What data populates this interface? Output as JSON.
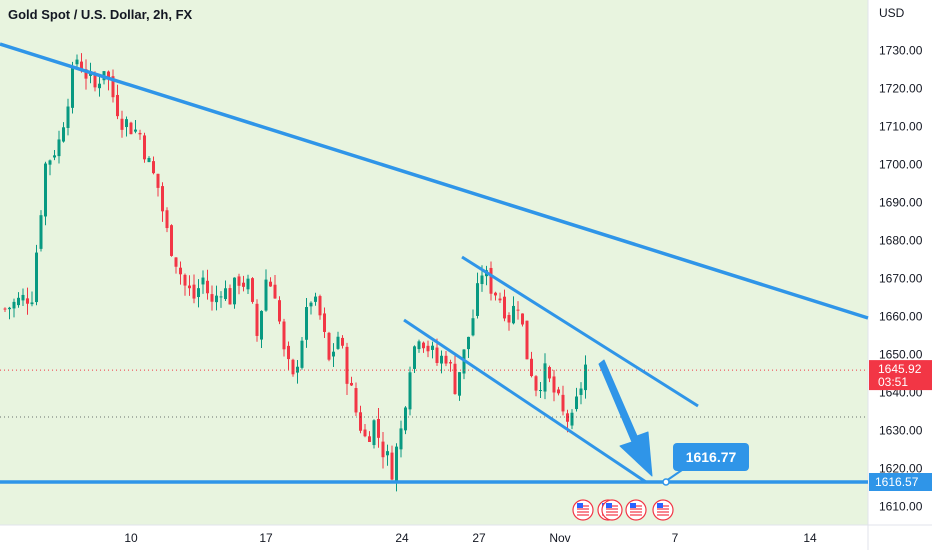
{
  "chart_title": "Gold Spot / U.S. Dollar, 2h, FX",
  "currency_label": "USD",
  "price_ticks": [
    "1730.00",
    "1720.00",
    "1710.00",
    "1700.00",
    "1690.00",
    "1680.00",
    "1670.00",
    "1660.00",
    "1650.00",
    "1640.00",
    "1630.00",
    "1620.00",
    "1610.00"
  ],
  "date_ticks": [
    "10",
    "17",
    "24",
    "27",
    "Nov",
    "7",
    "14"
  ],
  "price_label": {
    "value": "1645.92",
    "countdown": "03:51",
    "color": "#f23645"
  },
  "support_label": "1616.57",
  "target_label": "1616.77",
  "colors": {
    "up": "#089981",
    "down": "#f23645",
    "lines": "#2f95e8",
    "bg_tint": "#d5ebc5",
    "current_price": "#f23645"
  },
  "event_icons": [
    "us-flag-icon",
    "us-flag-icon",
    "us-flag-icon",
    "us-flag-icon",
    "us-flag-icon"
  ],
  "chart_data": {
    "type": "candlestick",
    "title": "Gold Spot / U.S. Dollar, 2h, FX",
    "xlabel": "",
    "ylabel": "USD",
    "ylim": [
      1605,
      1735
    ],
    "x_ticks": [
      "10",
      "17",
      "24",
      "27",
      "Nov",
      "7",
      "14"
    ],
    "anchor_path": [
      [
        0,
        1662
      ],
      [
        3,
        1664
      ],
      [
        6,
        1666
      ],
      [
        9,
        1700
      ],
      [
        12,
        1706
      ],
      [
        14,
        1718
      ],
      [
        16,
        1728
      ],
      [
        18,
        1724
      ],
      [
        20,
        1720
      ],
      [
        22,
        1726
      ],
      [
        24,
        1718
      ],
      [
        26,
        1712
      ],
      [
        28,
        1710
      ],
      [
        30,
        1708
      ],
      [
        32,
        1700
      ],
      [
        34,
        1694
      ],
      [
        36,
        1682
      ],
      [
        38,
        1675
      ],
      [
        40,
        1668
      ],
      [
        42,
        1665
      ],
      [
        44,
        1670
      ],
      [
        46,
        1663
      ],
      [
        48,
        1668
      ],
      [
        50,
        1665
      ],
      [
        52,
        1670
      ],
      [
        54,
        1668
      ],
      [
        56,
        1655
      ],
      [
        58,
        1670
      ],
      [
        60,
        1667
      ],
      [
        62,
        1650
      ],
      [
        64,
        1643
      ],
      [
        66,
        1655
      ],
      [
        68,
        1665
      ],
      [
        70,
        1660
      ],
      [
        72,
        1648
      ],
      [
        74,
        1655
      ],
      [
        76,
        1645
      ],
      [
        78,
        1635
      ],
      [
        80,
        1628
      ],
      [
        82,
        1632
      ],
      [
        84,
        1625
      ],
      [
        86,
        1620
      ],
      [
        88,
        1630
      ],
      [
        90,
        1648
      ],
      [
        92,
        1656
      ],
      [
        94,
        1652
      ],
      [
        96,
        1648
      ],
      [
        98,
        1650
      ],
      [
        100,
        1642
      ],
      [
        102,
        1650
      ],
      [
        104,
        1660
      ],
      [
        106,
        1672
      ],
      [
        108,
        1668
      ],
      [
        110,
        1665
      ],
      [
        112,
        1660
      ],
      [
        114,
        1664
      ],
      [
        116,
        1650
      ],
      [
        118,
        1642
      ],
      [
        120,
        1645
      ],
      [
        122,
        1640
      ],
      [
        124,
        1634
      ],
      [
        126,
        1632
      ],
      [
        128,
        1642
      ],
      [
        130,
        1652
      ]
    ],
    "total_bars": 130,
    "current_price": 1645.92,
    "annotations": [
      {
        "type": "trendline",
        "name": "upper-downtrend-line",
        "points": [
          [
            "Oct 5",
            1732
          ],
          [
            "Nov 15",
            1660
          ]
        ]
      },
      {
        "type": "channel-upper",
        "points": [
          [
            "Oct 26",
            1675
          ],
          [
            "Nov 4",
            1640
          ]
        ]
      },
      {
        "type": "channel-lower",
        "points": [
          [
            "Oct 24",
            1659
          ],
          [
            "Nov 3",
            1616.6
          ]
        ]
      },
      {
        "type": "horizontal",
        "name": "support",
        "value": 1616.57
      },
      {
        "type": "arrow",
        "direction": "down",
        "target": 1616.77
      }
    ]
  }
}
